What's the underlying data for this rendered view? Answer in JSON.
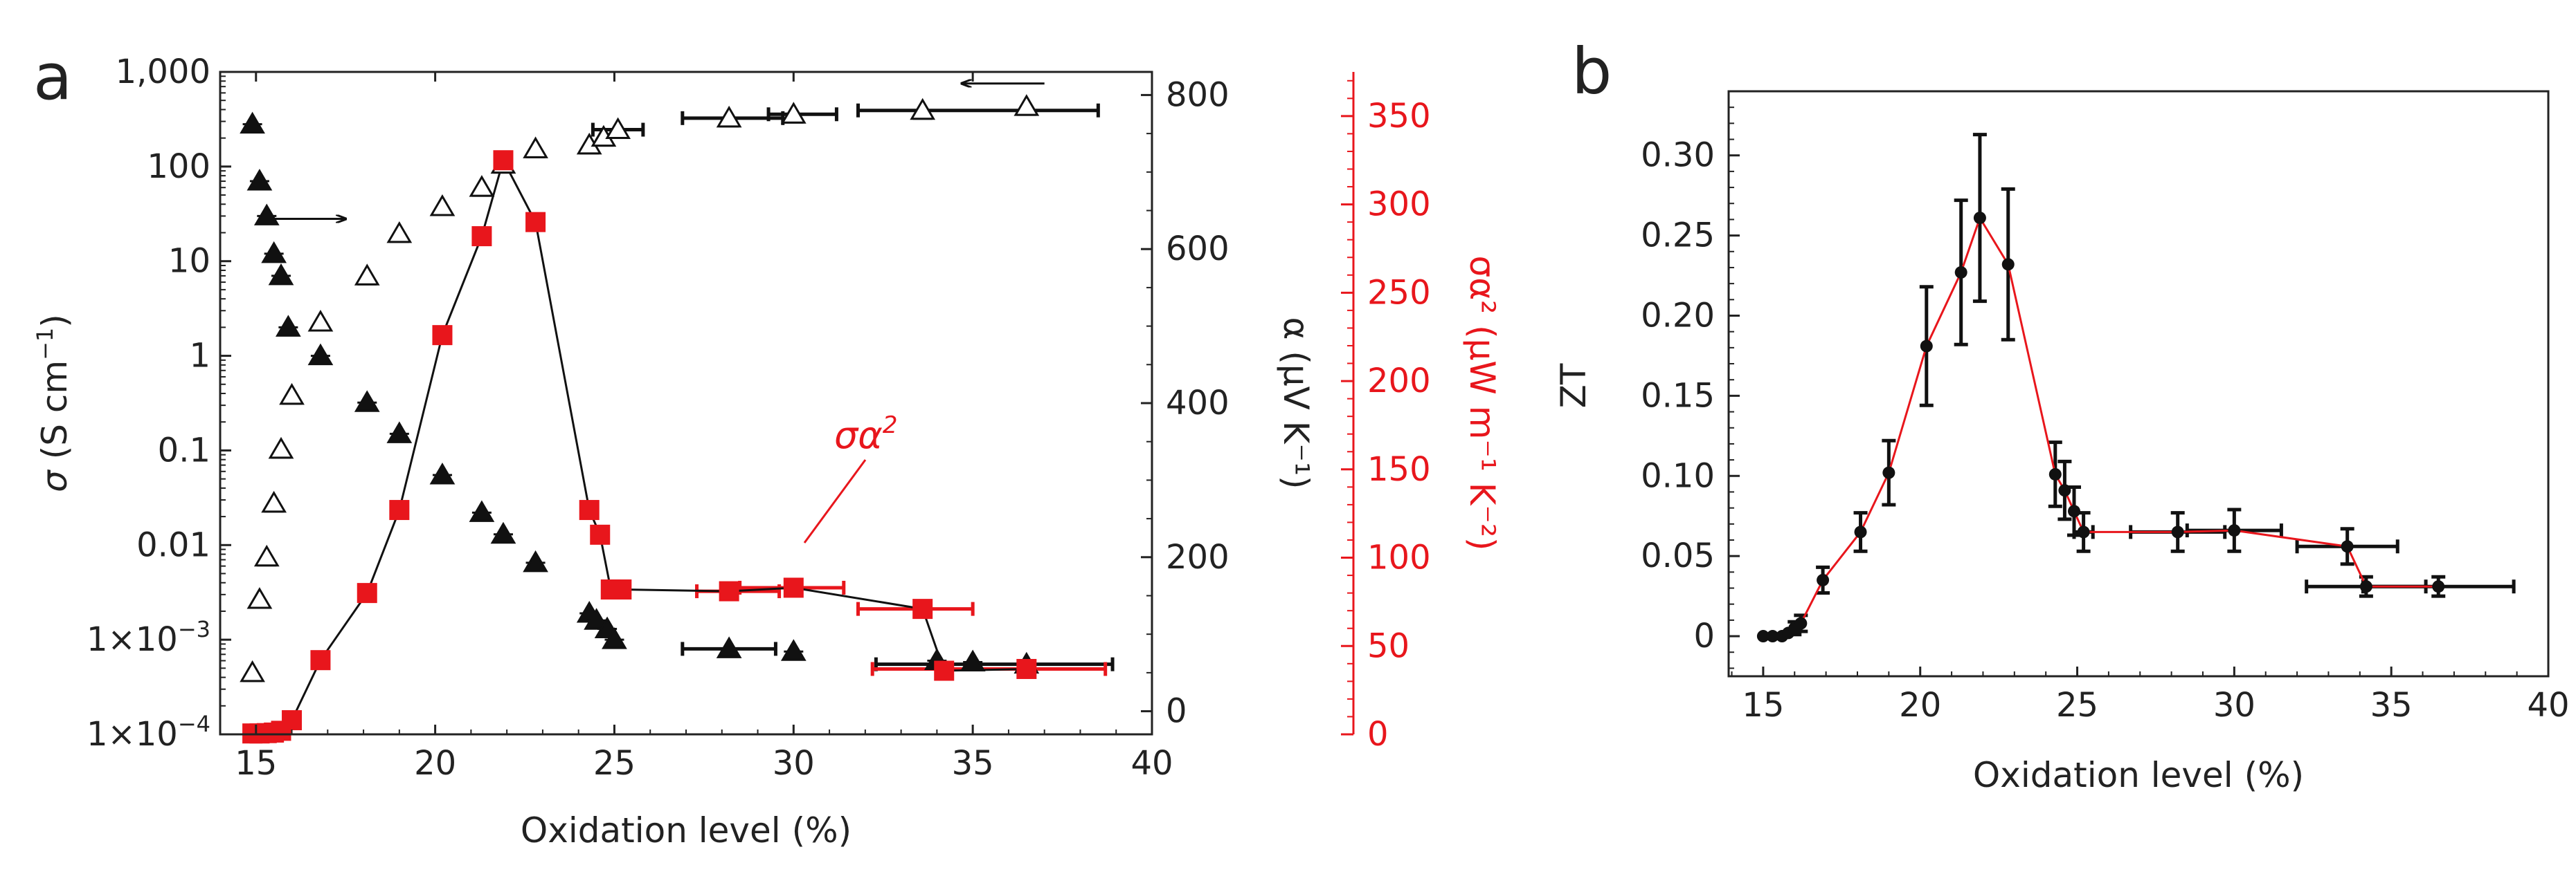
{
  "colors": {
    "red": "#e8161c",
    "black": "#111111"
  },
  "chart_data": [
    {
      "type": "scatter",
      "panel_letter": "a",
      "xlabel": "Oxidation level (%)",
      "xlim": [
        14,
        40
      ],
      "x_ticks": [
        15,
        20,
        25,
        30,
        35,
        40
      ],
      "x_tick_labels": [
        "15",
        "20",
        "25",
        "30",
        "35",
        "40"
      ],
      "left_axis": {
        "label_symbol": "σ",
        "label_units": "(S cm",
        "label_exp": "−1",
        "label_close": ")",
        "scale": "log",
        "range": [
          0.0001,
          1000
        ],
        "ticks": [
          0.0001,
          0.001,
          0.01,
          0.1,
          1,
          10,
          100,
          1000
        ],
        "tick_labels": [
          "1×10",
          "1×10",
          "0.01",
          "0.1",
          "1",
          "10",
          "100",
          "1,000"
        ],
        "tick_exps": [
          "−4",
          "−3",
          "",
          "",
          "",
          "",
          "",
          ""
        ]
      },
      "right_axis_1": {
        "label": "α (μV K⁻¹)",
        "range": [
          -30,
          830
        ],
        "ticks": [
          0,
          200,
          400,
          600,
          800
        ],
        "tick_labels": [
          "0",
          "200",
          "400",
          "600",
          "800"
        ]
      },
      "right_axis_2": {
        "label": "σα² (μW m⁻¹ K⁻²)",
        "range": [
          0,
          375
        ],
        "ticks": [
          0,
          50,
          100,
          150,
          200,
          250,
          300,
          350
        ],
        "tick_labels": [
          "0",
          "50",
          "100",
          "150",
          "200",
          "250",
          "300",
          "350"
        ]
      },
      "annotation": {
        "text": "σα",
        "exp": "2"
      },
      "series": [
        {
          "name": "σ (filled triangles)",
          "axis": "left",
          "x": [
            14.9,
            15.1,
            15.3,
            15.5,
            15.7,
            15.9,
            16.8,
            18.1,
            19.0,
            20.2,
            21.3,
            21.9,
            22.8,
            24.3,
            24.5,
            24.8,
            25.0,
            28.2,
            30.0,
            34.0,
            35.0,
            36.5
          ],
          "y": [
            280,
            70,
            30,
            12,
            7,
            2,
            1,
            0.32,
            0.15,
            0.055,
            0.022,
            0.013,
            0.0065,
            0.0019,
            0.0016,
            0.0013,
            0.001,
            0.0008,
            0.00075,
            0.0006,
            0.00058,
            0.00055
          ]
        },
        {
          "name": "α (open triangles)",
          "axis": "right1",
          "x": [
            14.9,
            15.1,
            15.3,
            15.5,
            15.7,
            16.0,
            16.8,
            18.1,
            19.0,
            20.2,
            21.3,
            21.9,
            22.8,
            24.3,
            24.7,
            25.1,
            28.2,
            30.0,
            33.6,
            36.5
          ],
          "y": [
            50,
            145,
            200,
            270,
            340,
            410,
            505,
            565,
            620,
            655,
            680,
            710,
            730,
            735,
            745,
            755,
            770,
            775,
            780,
            785
          ]
        },
        {
          "name": "σα² (red squares)",
          "axis": "right2",
          "x": [
            14.9,
            15.1,
            15.3,
            15.5,
            15.7,
            16.0,
            16.8,
            18.1,
            19.0,
            20.2,
            21.3,
            21.9,
            22.8,
            24.3,
            24.6,
            24.9,
            25.2,
            28.2,
            30.0,
            33.6,
            34.2,
            36.5
          ],
          "y": [
            0.5,
            0.5,
            0.7,
            1,
            2,
            8,
            42,
            80,
            127,
            226,
            282,
            325,
            290,
            127,
            113,
            82,
            82,
            81,
            83,
            71,
            36,
            37
          ]
        }
      ],
      "x_error_bars": [
        {
          "series": "α",
          "x": 25.1,
          "xerr": [
            24.4,
            25.8
          ]
        },
        {
          "series": "α",
          "x": 28.2,
          "xerr": [
            26.9,
            29.7
          ]
        },
        {
          "series": "α",
          "x": 30.0,
          "xerr": [
            29.3,
            31.2
          ]
        },
        {
          "series": "α",
          "x": 33.6,
          "xerr": [
            31.8,
            38.5
          ]
        },
        {
          "series": "σ",
          "x": 28.2,
          "xerr": [
            26.9,
            29.5
          ]
        },
        {
          "series": "σ",
          "x": 36.5,
          "xerr": [
            32.3,
            38.9
          ]
        },
        {
          "series": "σα²",
          "x": 28.2,
          "xerr": [
            27.3,
            29.6
          ]
        },
        {
          "series": "σα²",
          "x": 30.0,
          "xerr": [
            28.5,
            31.4
          ]
        },
        {
          "series": "σα²",
          "x": 33.6,
          "xerr": [
            31.8,
            35.0
          ]
        },
        {
          "series": "σα²",
          "x": 36.5,
          "xerr": [
            32.2,
            38.7
          ]
        }
      ],
      "arrows": [
        {
          "direction": "right",
          "at_x": 15.5,
          "to_x": 17.5,
          "axis_value_left": 28
        },
        {
          "direction": "left",
          "at_x": 37.0,
          "to_x": 34.7,
          "axis_value_right1": 815
        }
      ]
    },
    {
      "type": "line",
      "panel_letter": "b",
      "xlabel": "Oxidation level (%)",
      "ylabel": "ZT",
      "xlim": [
        13.9,
        40
      ],
      "ylim": [
        -0.025,
        0.34
      ],
      "x_ticks": [
        15,
        20,
        25,
        30,
        35,
        40
      ],
      "x_tick_labels": [
        "15",
        "20",
        "25",
        "30",
        "35",
        "40"
      ],
      "y_ticks": [
        0,
        0.05,
        0.1,
        0.15,
        0.2,
        0.25,
        0.3
      ],
      "y_tick_labels": [
        "0",
        "0.05",
        "0.10",
        "0.15",
        "0.20",
        "0.25",
        "0.30"
      ],
      "series": [
        {
          "name": "ZT",
          "x": [
            15.0,
            15.3,
            15.6,
            15.8,
            16.0,
            16.2,
            16.9,
            18.1,
            19.0,
            20.2,
            21.3,
            21.9,
            22.8,
            24.3,
            24.6,
            24.9,
            25.2,
            28.2,
            30.0,
            33.6,
            34.2,
            36.5
          ],
          "y": [
            0.0,
            0.0,
            0.0,
            0.002,
            0.005,
            0.008,
            0.035,
            0.065,
            0.102,
            0.181,
            0.227,
            0.261,
            0.232,
            0.101,
            0.091,
            0.078,
            0.065,
            0.065,
            0.066,
            0.056,
            0.031,
            0.031
          ],
          "yerr": [
            0.002,
            0.002,
            0.002,
            0.003,
            0.004,
            0.005,
            0.008,
            0.012,
            0.02,
            0.037,
            0.045,
            0.052,
            0.047,
            0.02,
            0.018,
            0.015,
            0.012,
            0.012,
            0.013,
            0.011,
            0.006,
            0.006
          ],
          "xerr": [
            0,
            0,
            0,
            0,
            0,
            0,
            0,
            0,
            0,
            0,
            0,
            0,
            0,
            0,
            0,
            0,
            0.3,
            1.5,
            1.5,
            1.6,
            1.9,
            2.4
          ]
        }
      ]
    }
  ]
}
